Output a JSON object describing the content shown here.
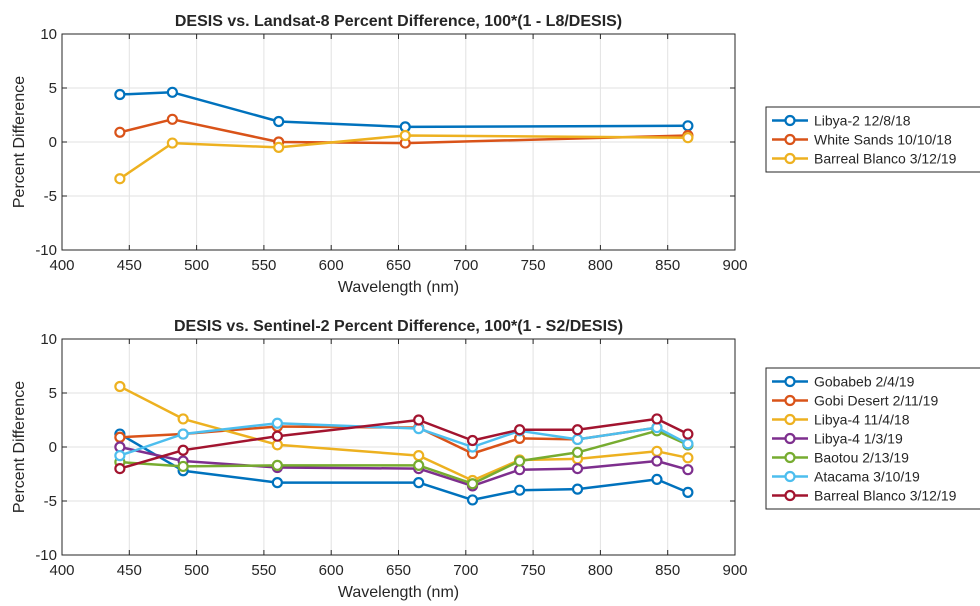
{
  "chart_data": [
    {
      "type": "line",
      "title": "DESIS vs. Landsat-8 Percent Difference, 100*(1 - L8/DESIS)",
      "xlabel": "Wavelength (nm)",
      "ylabel": "Percent Difference",
      "xlim": [
        400,
        900
      ],
      "ylim": [
        -10,
        10
      ],
      "xticks": [
        "400",
        "450",
        "500",
        "550",
        "600",
        "650",
        "700",
        "750",
        "800",
        "850",
        "900"
      ],
      "yticks": [
        "-10",
        "-5",
        "0",
        "5",
        "10"
      ],
      "grid": true,
      "legend_position": "outside-right",
      "x": [
        443,
        482,
        561,
        655,
        865
      ],
      "series": [
        {
          "name": "Libya-2 12/8/18",
          "color": "#0072BD",
          "values": [
            4.4,
            4.6,
            1.9,
            1.4,
            1.5
          ]
        },
        {
          "name": "White Sands 10/10/18",
          "color": "#D95319",
          "values": [
            0.9,
            2.1,
            0.0,
            -0.1,
            0.6
          ]
        },
        {
          "name": "Barreal Blanco 3/12/19",
          "color": "#EDB120",
          "values": [
            -3.4,
            -0.1,
            -0.5,
            0.6,
            0.4
          ]
        }
      ]
    },
    {
      "type": "line",
      "title": "DESIS vs. Sentinel-2 Percent Difference, 100*(1 - S2/DESIS)",
      "xlabel": "Wavelength (nm)",
      "ylabel": "Percent Difference",
      "xlim": [
        400,
        900
      ],
      "ylim": [
        -10,
        10
      ],
      "xticks": [
        "400",
        "450",
        "500",
        "550",
        "600",
        "650",
        "700",
        "750",
        "800",
        "850",
        "900"
      ],
      "yticks": [
        "-10",
        "-5",
        "0",
        "5",
        "10"
      ],
      "grid": true,
      "legend_position": "outside-right",
      "x": [
        443,
        490,
        560,
        665,
        705,
        740,
        783,
        842,
        865
      ],
      "series": [
        {
          "name": "Gobabeb 2/4/19",
          "color": "#0072BD",
          "values": [
            1.2,
            -2.2,
            -3.3,
            -3.3,
            -4.9,
            -4.0,
            -3.9,
            -3.0,
            -4.2
          ]
        },
        {
          "name": "Gobi Desert 2/11/19",
          "color": "#D95319",
          "values": [
            0.9,
            1.2,
            1.9,
            1.8,
            -0.6,
            0.8,
            0.7,
            1.8,
            0.2
          ]
        },
        {
          "name": "Libya-4 11/4/18",
          "color": "#EDB120",
          "values": [
            5.6,
            2.6,
            0.2,
            -0.8,
            -3.1,
            -1.2,
            -1.1,
            -0.4,
            -1.0
          ]
        },
        {
          "name": "Libya-4 1/3/19",
          "color": "#7E2F8E",
          "values": [
            0.0,
            -1.3,
            -1.9,
            -2.0,
            -3.6,
            -2.1,
            -2.0,
            -1.3,
            -2.1
          ]
        },
        {
          "name": "Baotou 2/13/19",
          "color": "#77AC30",
          "values": [
            -1.4,
            -1.8,
            -1.7,
            -1.7,
            -3.4,
            -1.3,
            -0.5,
            1.5,
            0.2
          ]
        },
        {
          "name": "Atacama 3/10/19",
          "color": "#4DBEEE",
          "values": [
            -0.8,
            1.2,
            2.2,
            1.7,
            0.0,
            1.5,
            0.7,
            1.8,
            0.3
          ]
        },
        {
          "name": "Barreal Blanco 3/12/19",
          "color": "#A2142F",
          "values": [
            -2.0,
            -0.3,
            1.0,
            2.5,
            0.6,
            1.6,
            1.6,
            2.6,
            1.2
          ]
        }
      ]
    }
  ]
}
